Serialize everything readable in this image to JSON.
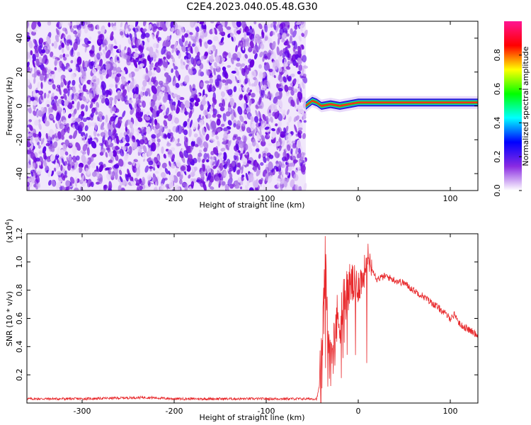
{
  "title": "C2E4.2023.040.05.48.G30",
  "chart_data": [
    {
      "type": "heatmap",
      "xlabel": "Height of straight line (km)",
      "ylabel": "Frequency (Hz)",
      "xlim": [
        -360,
        130
      ],
      "ylim": [
        -50,
        50
      ],
      "xticks": [
        -300,
        -200,
        -100,
        0,
        100
      ],
      "yticks": [
        -40,
        -20,
        0,
        20,
        40
      ],
      "noise_region_x": [
        -360,
        -57
      ],
      "signal_region_x": [
        -57,
        130
      ],
      "signal_centerline": [
        {
          "x": -57,
          "y": 0
        },
        {
          "x": -50,
          "y": 3
        },
        {
          "x": -45,
          "y": 2
        },
        {
          "x": -40,
          "y": 0
        },
        {
          "x": -30,
          "y": 1
        },
        {
          "x": -20,
          "y": 0
        },
        {
          "x": -10,
          "y": 1
        },
        {
          "x": 0,
          "y": 2
        },
        {
          "x": 20,
          "y": 2
        },
        {
          "x": 60,
          "y": 2
        },
        {
          "x": 90,
          "y": 2
        },
        {
          "x": 110,
          "y": 2
        },
        {
          "x": 130,
          "y": 2
        }
      ],
      "colorbar": {
        "label": "Normalized spectral amplitude",
        "ticks": [
          0.0,
          0.2,
          0.4,
          0.6,
          0.8
        ],
        "tick_labels": [
          "0.0",
          "0.2",
          "0.4",
          "0.6",
          "0.8"
        ],
        "range": [
          0,
          1
        ],
        "colors": [
          "#ffffff",
          "#8a2be2",
          "#0000ff",
          "#00ffff",
          "#00ff00",
          "#ffff00",
          "#ff0000",
          "#ff1493"
        ]
      }
    },
    {
      "type": "line",
      "xlabel": "Height of straight line (km)",
      "ylabel": "SNR (10 * v/v)",
      "exponent_label": "(x10",
      "exponent_power": "4",
      "exponent_close": ")",
      "xlim": [
        -360,
        130
      ],
      "ylim": [
        0,
        1.2
      ],
      "xticks": [
        -300,
        -200,
        -100,
        0,
        100
      ],
      "yticks": [
        0.2,
        0.4,
        0.6,
        0.8,
        1.0,
        1.2
      ],
      "ytick_labels": [
        "0.2",
        "0.4",
        "0.6",
        "0.8",
        "1.0",
        "1.2"
      ],
      "series": [
        {
          "color": "#e8282b",
          "points": [
            {
              "x": -360,
              "y": 0.03
            },
            {
              "x": -300,
              "y": 0.03
            },
            {
              "x": -230,
              "y": 0.04
            },
            {
              "x": -200,
              "y": 0.03
            },
            {
              "x": -100,
              "y": 0.03
            },
            {
              "x": -45,
              "y": 0.03
            },
            {
              "x": -40,
              "y": 0.2
            },
            {
              "x": -36,
              "y": 0.95
            },
            {
              "x": -33,
              "y": 0.5
            },
            {
              "x": -30,
              "y": 0.35
            },
            {
              "x": -25,
              "y": 0.55
            },
            {
              "x": -20,
              "y": 0.6
            },
            {
              "x": -15,
              "y": 0.75
            },
            {
              "x": -8,
              "y": 0.85
            },
            {
              "x": -3,
              "y": 0.82
            },
            {
              "x": 5,
              "y": 0.88
            },
            {
              "x": 10,
              "y": 1.05
            },
            {
              "x": 20,
              "y": 0.88
            },
            {
              "x": 30,
              "y": 0.9
            },
            {
              "x": 40,
              "y": 0.87
            },
            {
              "x": 50,
              "y": 0.85
            },
            {
              "x": 60,
              "y": 0.8
            },
            {
              "x": 70,
              "y": 0.76
            },
            {
              "x": 80,
              "y": 0.71
            },
            {
              "x": 90,
              "y": 0.66
            },
            {
              "x": 100,
              "y": 0.6
            },
            {
              "x": 105,
              "y": 0.63
            },
            {
              "x": 110,
              "y": 0.56
            },
            {
              "x": 120,
              "y": 0.52
            },
            {
              "x": 130,
              "y": 0.48
            }
          ]
        }
      ]
    }
  ]
}
